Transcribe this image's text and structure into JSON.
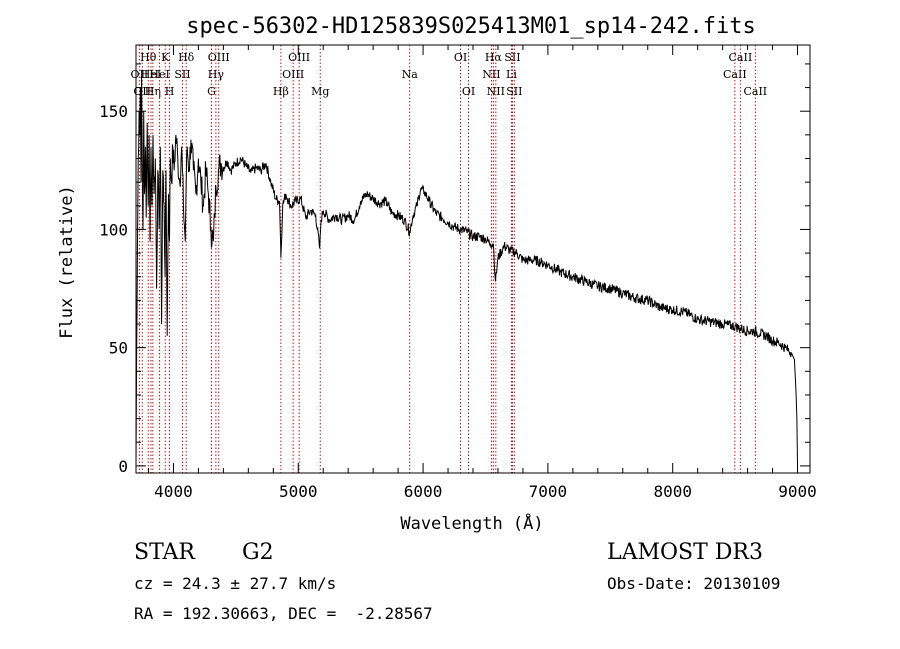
{
  "chart_data": {
    "type": "line",
    "title": "spec-56302-HD125839S025413M01_sp14-242.fits",
    "xlabel": "Wavelength (Å)",
    "ylabel": "Flux (relative)",
    "xlim": [
      3700,
      9100
    ],
    "ylim": [
      -3,
      178
    ],
    "x_ticks": [
      4000,
      5000,
      6000,
      7000,
      8000,
      9000
    ],
    "y_ticks": [
      0,
      50,
      100,
      150
    ],
    "series": [
      {
        "name": "flux",
        "x": [
          3700,
          3705,
          3712,
          3718,
          3725,
          3730,
          3735,
          3740,
          3745,
          3750,
          3756,
          3762,
          3768,
          3775,
          3782,
          3790,
          3798,
          3805,
          3812,
          3820,
          3828,
          3836,
          3845,
          3855,
          3865,
          3875,
          3885,
          3895,
          3905,
          3915,
          3925,
          3933,
          3940,
          3950,
          3960,
          3968,
          3975,
          3985,
          3995,
          4005,
          4020,
          4035,
          4050,
          4065,
          4080,
          4095,
          4102,
          4110,
          4125,
          4140,
          4160,
          4180,
          4200,
          4220,
          4240,
          4260,
          4280,
          4300,
          4320,
          4330,
          4340,
          4360,
          4380,
          4400,
          4430,
          4460,
          4500,
          4540,
          4580,
          4620,
          4660,
          4700,
          4740,
          4780,
          4820,
          4850,
          4861,
          4875,
          4900,
          4940,
          4980,
          5020,
          5060,
          5100,
          5140,
          5172,
          5183,
          5200,
          5250,
          5300,
          5350,
          5400,
          5450,
          5500,
          5550,
          5600,
          5650,
          5700,
          5750,
          5800,
          5850,
          5893,
          5920,
          5950,
          5980,
          6010,
          6050,
          6100,
          6150,
          6200,
          6250,
          6300,
          6350,
          6400,
          6450,
          6500,
          6540,
          6563,
          6580,
          6600,
          6650,
          6700,
          6750,
          6800,
          6850,
          6900,
          6950,
          7000,
          7100,
          7200,
          7300,
          7400,
          7500,
          7600,
          7700,
          7800,
          7900,
          8000,
          8100,
          8200,
          8300,
          8400,
          8500,
          8550,
          8600,
          8650,
          8700,
          8750,
          8800,
          8850,
          8900,
          8950,
          8975,
          8985,
          8995,
          9000
        ],
        "y": [
          0,
          45,
          95,
          130,
          150,
          140,
          160,
          120,
          165,
          130,
          100,
          150,
          115,
          135,
          105,
          145,
          110,
          140,
          95,
          135,
          110,
          140,
          115,
          130,
          75,
          125,
          100,
          135,
          60,
          125,
          110,
          80,
          125,
          55,
          115,
          95,
          130,
          120,
          135,
          125,
          140,
          130,
          120,
          135,
          110,
          95,
          120,
          135,
          125,
          138,
          125,
          115,
          130,
          120,
          110,
          125,
          115,
          100,
          95,
          105,
          118,
          125,
          128,
          126,
          129,
          125,
          128,
          130,
          127,
          124,
          126,
          125,
          128,
          120,
          113,
          112,
          88,
          110,
          115,
          110,
          112,
          113,
          105,
          108,
          106,
          92,
          104,
          108,
          104,
          106,
          104,
          106,
          104,
          112,
          115,
          113,
          111,
          112,
          107,
          106,
          104,
          99,
          106,
          110,
          117,
          116,
          112,
          107,
          105,
          103,
          101,
          100,
          99,
          97,
          97,
          96,
          94,
          94,
          78,
          88,
          93,
          91,
          90,
          87,
          87,
          87,
          86,
          85,
          82,
          80,
          78,
          76,
          75,
          73,
          71,
          70,
          67,
          66,
          65,
          62,
          61,
          60,
          59,
          58,
          57,
          57,
          56,
          55,
          53,
          52,
          50,
          48,
          45,
          35,
          20,
          0
        ]
      }
    ],
    "lines": [
      {
        "w": 3727,
        "label": "OII",
        "row": 2
      },
      {
        "w": 3750,
        "label": "OII",
        "row": 3
      },
      {
        "w": 3798,
        "label": "Hθ",
        "row": 1
      },
      {
        "w": 3820,
        "label": "HeI",
        "row": 2
      },
      {
        "w": 3835,
        "label": "Hη",
        "row": 3
      },
      {
        "w": 3889,
        "label": "HeI",
        "row": 2
      },
      {
        "w": 3934,
        "label": "K",
        "row": 1
      },
      {
        "w": 3969,
        "label": "H",
        "row": 3
      },
      {
        "w": 4072,
        "label": "SII",
        "row": 2
      },
      {
        "w": 4102,
        "label": "Hδ",
        "row": 1
      },
      {
        "w": 4305,
        "label": "G",
        "row": 3
      },
      {
        "w": 4340,
        "label": "Hγ",
        "row": 2
      },
      {
        "w": 4363,
        "label": "OIII",
        "row": 1
      },
      {
        "w": 4861,
        "label": "Hβ",
        "row": 3
      },
      {
        "w": 4959,
        "label": "OIII",
        "row": 2
      },
      {
        "w": 5007,
        "label": "OIII",
        "row": 1
      },
      {
        "w": 5176,
        "label": "Mg",
        "row": 3
      },
      {
        "w": 5893,
        "label": "Na",
        "row": 2
      },
      {
        "w": 6300,
        "label": "OI",
        "row": 1
      },
      {
        "w": 6364,
        "label": "OI",
        "row": 3
      },
      {
        "w": 6548,
        "label": "NII",
        "row": 2
      },
      {
        "w": 6563,
        "label": "Hα",
        "row": 1
      },
      {
        "w": 6583,
        "label": "NII",
        "row": 3
      },
      {
        "w": 6708,
        "label": "Li",
        "row": 2
      },
      {
        "w": 6716,
        "label": "SII",
        "row": 1
      },
      {
        "w": 6731,
        "label": "SII",
        "row": 3
      },
      {
        "w": 8498,
        "label": "CaII",
        "row": 2
      },
      {
        "w": 8542,
        "label": "CaII",
        "row": 1
      },
      {
        "w": 8662,
        "label": "CaII",
        "row": 3
      }
    ]
  },
  "info": {
    "object_class": "STAR",
    "subclass": "G2",
    "survey": "LAMOST DR3",
    "redshift": "cz = 24.3 ± 27.7 km/s",
    "obs_date": "Obs-Date: 20130109",
    "coords": "RA = 192.30663, DEC =  -2.28567"
  },
  "colors": {
    "spectrum": "#000000",
    "line_marker": "#b00000",
    "axes": "#000000",
    "background": "#ffffff"
  }
}
